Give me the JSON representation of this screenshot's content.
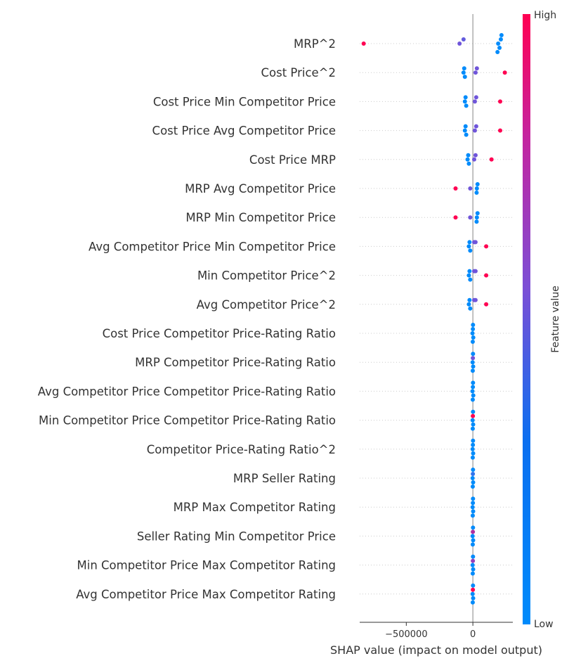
{
  "chart_data": {
    "type": "scatter",
    "subtype": "shap-beeswarm",
    "xlabel": "SHAP value (impact on model output)",
    "x_ticks": [
      -500000,
      0
    ],
    "x_tick_labels": [
      "−500000",
      "0"
    ],
    "xlim": [
      -850000,
      300000
    ],
    "colorbar": {
      "label": "Feature value",
      "high_label": "High",
      "low_label": "Low",
      "high_color": "#ff0052",
      "mid_color": "#7b4fd6",
      "low_color": "#008bfb"
    },
    "features": [
      {
        "name": "MRP^2",
        "points": [
          {
            "x": -820000,
            "c": 1.0
          },
          {
            "x": -100000,
            "c": 0.45
          },
          {
            "x": -70000,
            "c": 0.4
          },
          {
            "x": 190000,
            "c": 0.0
          },
          {
            "x": 210000,
            "c": 0.0
          },
          {
            "x": 200000,
            "c": 0.0
          },
          {
            "x": 215000,
            "c": 0.0
          },
          {
            "x": 185000,
            "c": 0.0
          }
        ]
      },
      {
        "name": "Cost Price^2",
        "points": [
          {
            "x": -70000,
            "c": 0.0
          },
          {
            "x": -65000,
            "c": 0.0
          },
          {
            "x": -60000,
            "c": 0.0
          },
          {
            "x": 20000,
            "c": 0.45
          },
          {
            "x": 30000,
            "c": 0.45
          },
          {
            "x": 240000,
            "c": 1.0
          }
        ]
      },
      {
        "name": "Cost Price Min Competitor Price",
        "points": [
          {
            "x": -60000,
            "c": 0.0
          },
          {
            "x": -55000,
            "c": 0.0
          },
          {
            "x": -50000,
            "c": 0.0
          },
          {
            "x": 15000,
            "c": 0.45
          },
          {
            "x": 25000,
            "c": 0.45
          },
          {
            "x": 205000,
            "c": 1.0
          }
        ]
      },
      {
        "name": "Cost Price Avg Competitor Price",
        "points": [
          {
            "x": -60000,
            "c": 0.0
          },
          {
            "x": -55000,
            "c": 0.0
          },
          {
            "x": -50000,
            "c": 0.0
          },
          {
            "x": 15000,
            "c": 0.45
          },
          {
            "x": 25000,
            "c": 0.45
          },
          {
            "x": 205000,
            "c": 1.0
          }
        ]
      },
      {
        "name": "Cost Price MRP",
        "points": [
          {
            "x": -40000,
            "c": 0.0
          },
          {
            "x": -35000,
            "c": 0.0
          },
          {
            "x": -30000,
            "c": 0.0
          },
          {
            "x": 10000,
            "c": 0.45
          },
          {
            "x": 20000,
            "c": 0.45
          },
          {
            "x": 140000,
            "c": 1.0
          }
        ]
      },
      {
        "name": "MRP Avg Competitor Price",
        "points": [
          {
            "x": -130000,
            "c": 1.0
          },
          {
            "x": -20000,
            "c": 0.45
          },
          {
            "x": 30000,
            "c": 0.0
          },
          {
            "x": 35000,
            "c": 0.0
          },
          {
            "x": 28000,
            "c": 0.0
          }
        ]
      },
      {
        "name": "MRP Min Competitor Price",
        "points": [
          {
            "x": -130000,
            "c": 1.0
          },
          {
            "x": -20000,
            "c": 0.45
          },
          {
            "x": 30000,
            "c": 0.0
          },
          {
            "x": 35000,
            "c": 0.0
          },
          {
            "x": 28000,
            "c": 0.0
          }
        ]
      },
      {
        "name": "Avg Competitor Price Min Competitor Price",
        "points": [
          {
            "x": -30000,
            "c": 0.0
          },
          {
            "x": -25000,
            "c": 0.0
          },
          {
            "x": -20000,
            "c": 0.0
          },
          {
            "x": 10000,
            "c": 0.45
          },
          {
            "x": 20000,
            "c": 0.45
          },
          {
            "x": 100000,
            "c": 1.0
          }
        ]
      },
      {
        "name": "Min Competitor Price^2",
        "points": [
          {
            "x": -30000,
            "c": 0.0
          },
          {
            "x": -25000,
            "c": 0.0
          },
          {
            "x": -20000,
            "c": 0.0
          },
          {
            "x": 10000,
            "c": 0.45
          },
          {
            "x": 20000,
            "c": 0.45
          },
          {
            "x": 100000,
            "c": 1.0
          }
        ]
      },
      {
        "name": "Avg Competitor Price^2",
        "points": [
          {
            "x": -30000,
            "c": 0.0
          },
          {
            "x": -25000,
            "c": 0.0
          },
          {
            "x": -20000,
            "c": 0.0
          },
          {
            "x": 10000,
            "c": 0.45
          },
          {
            "x": 20000,
            "c": 0.45
          },
          {
            "x": 100000,
            "c": 1.0
          }
        ]
      },
      {
        "name": "Cost Price Competitor Price-Rating Ratio",
        "points": [
          {
            "x": -3000,
            "c": 0.0
          },
          {
            "x": 0,
            "c": 0.0
          },
          {
            "x": 3000,
            "c": 0.0
          },
          {
            "x": 1000,
            "c": 0.0
          },
          {
            "x": -1000,
            "c": 0.0
          }
        ]
      },
      {
        "name": "MRP Competitor Price-Rating Ratio",
        "points": [
          {
            "x": -2000,
            "c": 0.0
          },
          {
            "x": 0,
            "c": 0.45
          },
          {
            "x": 2000,
            "c": 0.0
          },
          {
            "x": 1000,
            "c": 0.0
          },
          {
            "x": -1000,
            "c": 0.0
          }
        ]
      },
      {
        "name": "Avg Competitor Price Competitor Price-Rating Ratio",
        "points": [
          {
            "x": -3000,
            "c": 0.0
          },
          {
            "x": 0,
            "c": 0.0
          },
          {
            "x": 3000,
            "c": 0.0
          },
          {
            "x": 1000,
            "c": 0.0
          },
          {
            "x": -1000,
            "c": 0.0
          }
        ]
      },
      {
        "name": "Min Competitor Price Competitor Price-Rating Ratio",
        "points": [
          {
            "x": -2000,
            "c": 0.0
          },
          {
            "x": 0,
            "c": 1.0
          },
          {
            "x": 2000,
            "c": 0.0
          },
          {
            "x": 1000,
            "c": 0.0
          },
          {
            "x": -1000,
            "c": 0.0
          }
        ]
      },
      {
        "name": "Competitor Price-Rating Ratio^2",
        "points": [
          {
            "x": -2000,
            "c": 0.0
          },
          {
            "x": 0,
            "c": 0.0
          },
          {
            "x": 2000,
            "c": 0.0
          },
          {
            "x": 1000,
            "c": 0.0
          },
          {
            "x": -1000,
            "c": 0.0
          }
        ]
      },
      {
        "name": "MRP Seller Rating",
        "points": [
          {
            "x": -2000,
            "c": 0.0
          },
          {
            "x": 0,
            "c": 0.2
          },
          {
            "x": 2000,
            "c": 0.0
          },
          {
            "x": 1000,
            "c": 0.0
          },
          {
            "x": -1000,
            "c": 0.0
          }
        ]
      },
      {
        "name": "MRP Max Competitor Rating",
        "points": [
          {
            "x": -2000,
            "c": 0.0
          },
          {
            "x": 0,
            "c": 0.0
          },
          {
            "x": 2000,
            "c": 0.0
          },
          {
            "x": 1000,
            "c": 0.0
          },
          {
            "x": -1000,
            "c": 0.0
          }
        ]
      },
      {
        "name": "Seller Rating Min Competitor Price",
        "points": [
          {
            "x": -2000,
            "c": 0.0
          },
          {
            "x": 0,
            "c": 0.7
          },
          {
            "x": 2000,
            "c": 0.0
          },
          {
            "x": 1000,
            "c": 0.0
          },
          {
            "x": -1000,
            "c": 0.0
          }
        ]
      },
      {
        "name": "Min Competitor Price Max Competitor Rating",
        "points": [
          {
            "x": -2000,
            "c": 0.0
          },
          {
            "x": 0,
            "c": 0.6
          },
          {
            "x": 2000,
            "c": 0.0
          },
          {
            "x": 1000,
            "c": 0.0
          },
          {
            "x": -1000,
            "c": 0.0
          }
        ]
      },
      {
        "name": "Avg Competitor Price Max Competitor Rating",
        "points": [
          {
            "x": -2000,
            "c": 0.0
          },
          {
            "x": 0,
            "c": 1.0
          },
          {
            "x": 2000,
            "c": 0.0
          },
          {
            "x": 1000,
            "c": 0.0
          },
          {
            "x": -1000,
            "c": 0.0
          }
        ]
      }
    ]
  }
}
